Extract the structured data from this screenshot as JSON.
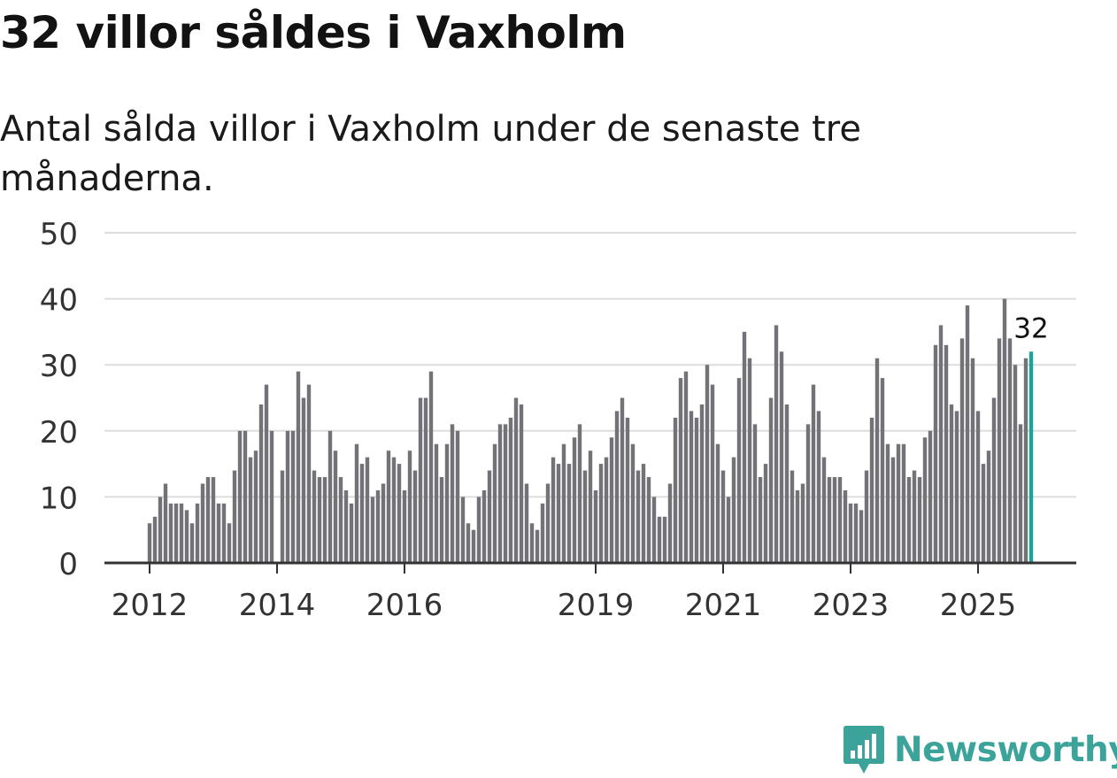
{
  "header": {
    "title": "32 villor såldes i Vaxholm",
    "subtitle": "Antal sålda villor i Vaxholm under de senaste tre månaderna."
  },
  "brand": {
    "name": "Newsworthy",
    "color": "#3ba39a"
  },
  "colors": {
    "bar": "#737277",
    "highlight": "#1aa39b",
    "grid": "#dddddd",
    "axis": "#333333"
  },
  "chart_data": {
    "type": "bar",
    "title": "32 villor såldes i Vaxholm",
    "xlabel": "",
    "ylabel": "",
    "ylim": [
      0,
      50
    ],
    "yticks": [
      0,
      10,
      20,
      30,
      40,
      50
    ],
    "x_start": "2012-01",
    "xtick_labels": [
      "2012",
      "2014",
      "2016",
      "2019",
      "2021",
      "2023",
      "2025"
    ],
    "xtick_index": [
      0,
      24,
      48,
      84,
      108,
      132,
      156
    ],
    "values": [
      6,
      7,
      10,
      12,
      9,
      9,
      9,
      8,
      6,
      9,
      12,
      13,
      13,
      9,
      9,
      6,
      14,
      20,
      20,
      16,
      17,
      24,
      27,
      20,
      0,
      14,
      20,
      20,
      29,
      25,
      27,
      14,
      13,
      13,
      20,
      17,
      13,
      11,
      9,
      18,
      15,
      16,
      10,
      11,
      12,
      17,
      16,
      15,
      11,
      17,
      14,
      25,
      25,
      29,
      18,
      13,
      18,
      21,
      20,
      10,
      6,
      5,
      10,
      11,
      14,
      18,
      21,
      21,
      22,
      25,
      24,
      12,
      6,
      5,
      9,
      12,
      16,
      15,
      18,
      15,
      19,
      21,
      14,
      17,
      11,
      15,
      16,
      19,
      23,
      25,
      22,
      18,
      14,
      15,
      13,
      10,
      7,
      7,
      12,
      22,
      28,
      29,
      23,
      22,
      24,
      30,
      27,
      18,
      14,
      10,
      16,
      28,
      35,
      31,
      21,
      13,
      15,
      25,
      36,
      32,
      24,
      14,
      11,
      12,
      21,
      27,
      23,
      16,
      13,
      13,
      13,
      11,
      9,
      9,
      8,
      14,
      22,
      31,
      28,
      18,
      16,
      18,
      18,
      13,
      14,
      13,
      19,
      20,
      33,
      36,
      33,
      24,
      23,
      34,
      39,
      31,
      23,
      15,
      17,
      25,
      34,
      40,
      34,
      30,
      21,
      31,
      32
    ],
    "highlight_label": "32"
  }
}
